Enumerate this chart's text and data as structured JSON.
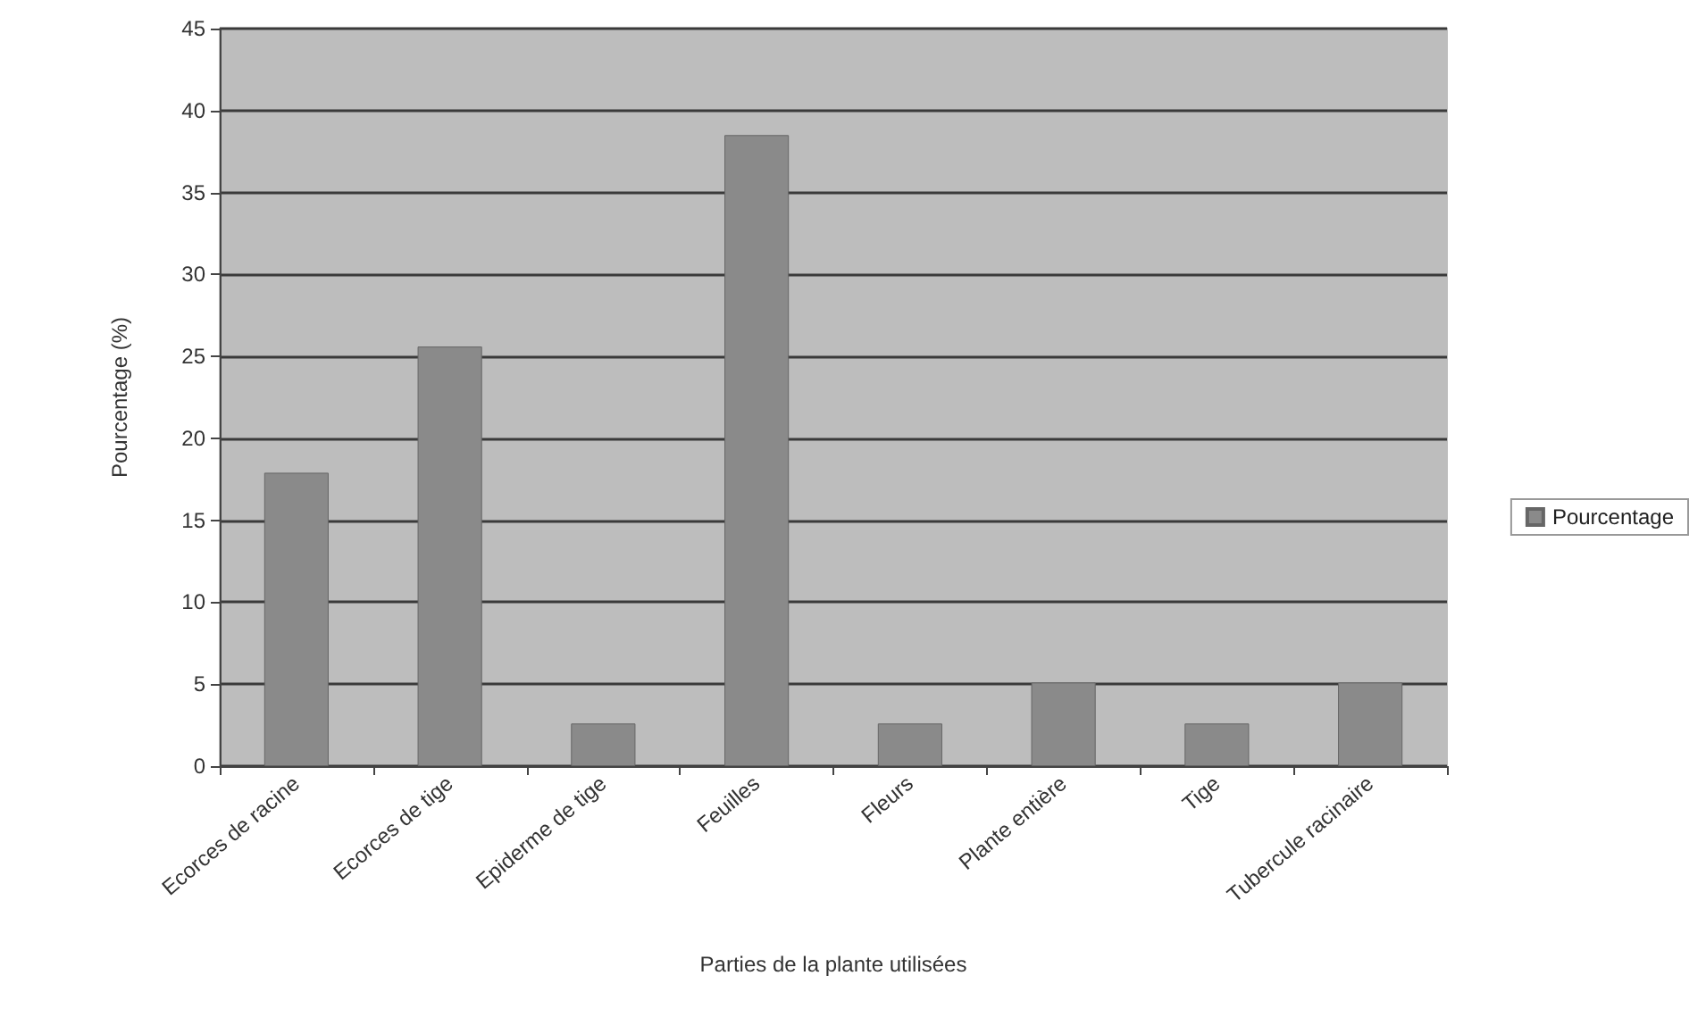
{
  "chart_data": {
    "type": "bar",
    "categories": [
      "Ecorces de racine",
      "Ecorces de tige",
      "Epiderme de tige",
      "Feuilles",
      "Fleurs",
      "Plante entière",
      "Tige",
      "Tubercule racinaire"
    ],
    "series": [
      {
        "name": "Pourcentage",
        "color": "#8a8a8a",
        "values": [
          17.9,
          25.6,
          2.6,
          38.5,
          2.6,
          5.1,
          2.6,
          5.1
        ]
      }
    ],
    "xlabel": "Parties de la plante utilisées",
    "ylabel": "Pourcentage (%)",
    "ylim": [
      0,
      45
    ],
    "yticks": [
      0,
      5,
      10,
      15,
      20,
      25,
      30,
      35,
      40,
      45
    ],
    "grid": "y",
    "legend": "right"
  }
}
